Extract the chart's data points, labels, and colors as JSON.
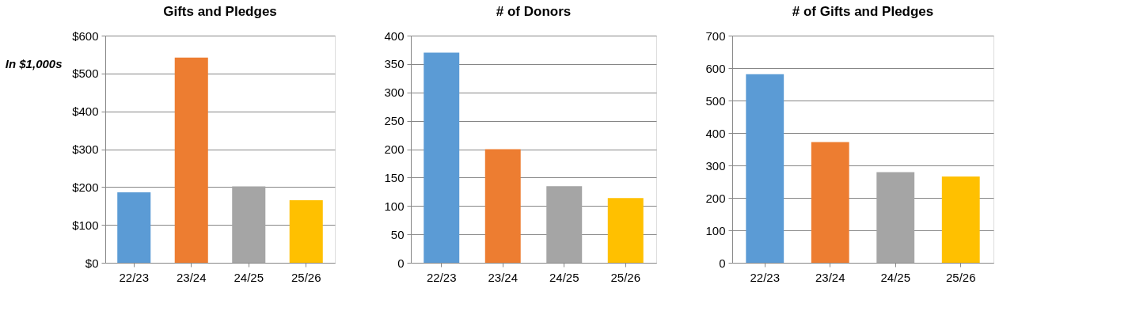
{
  "chart_data": [
    {
      "type": "bar",
      "title": "Gifts and Pledges",
      "ylabel": "In $1,000s",
      "categories": [
        "22/23",
        "23/24",
        "24/25",
        "25/26"
      ],
      "values": [
        186,
        542,
        202,
        165
      ],
      "colors": [
        "#5b9bd5",
        "#ed7d31",
        "#a5a5a5",
        "#ffc000"
      ],
      "ylim": [
        0,
        600
      ],
      "yticks": [
        {
          "value": 0,
          "label": "$0"
        },
        {
          "value": 100,
          "label": "$100"
        },
        {
          "value": 200,
          "label": "$200"
        },
        {
          "value": 300,
          "label": "$300"
        },
        {
          "value": 400,
          "label": "$400"
        },
        {
          "value": 500,
          "label": "$500"
        },
        {
          "value": 600,
          "label": "$600"
        }
      ],
      "grid": "y"
    },
    {
      "type": "bar",
      "title": "# of Donors",
      "categories": [
        "22/23",
        "23/24",
        "24/25",
        "25/26"
      ],
      "values": [
        370,
        200,
        135,
        114
      ],
      "colors": [
        "#5b9bd5",
        "#ed7d31",
        "#a5a5a5",
        "#ffc000"
      ],
      "ylim": [
        0,
        400
      ],
      "yticks": [
        0,
        50,
        100,
        150,
        200,
        250,
        300,
        350,
        400
      ],
      "grid": "y"
    },
    {
      "type": "bar",
      "title": "# of Gifts and Pledges",
      "categories": [
        "22/23",
        "23/24",
        "24/25",
        "25/26"
      ],
      "values": [
        581,
        372,
        279,
        266
      ],
      "colors": [
        "#5b9bd5",
        "#ed7d31",
        "#a5a5a5",
        "#ffc000"
      ],
      "ylim": [
        0,
        700
      ],
      "yticks": [
        0,
        100,
        200,
        300,
        400,
        500,
        600,
        700
      ],
      "grid": "y"
    }
  ]
}
